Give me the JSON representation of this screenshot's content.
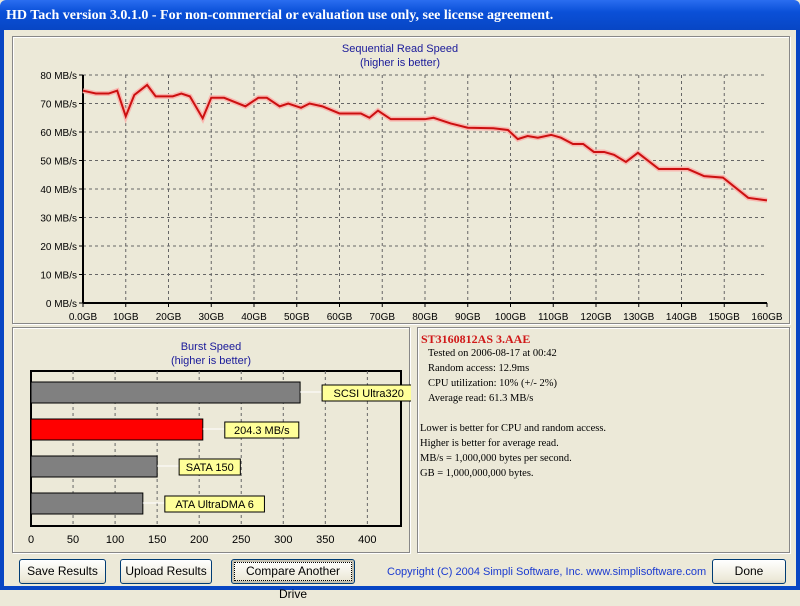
{
  "window": {
    "title": "HD Tach version 3.0.1.0  - For non-commercial or evaluation use only, see license agreement."
  },
  "chart_data": [
    {
      "type": "line",
      "title": "Sequential Read Speed",
      "subtitle": "(higher is better)",
      "xlim": [
        0,
        160
      ],
      "ylim": [
        0,
        80
      ],
      "xticks": [
        "0.0GB",
        "10GB",
        "20GB",
        "30GB",
        "40GB",
        "50GB",
        "60GB",
        "70GB",
        "80GB",
        "90GB",
        "100GB",
        "110GB",
        "120GB",
        "130GB",
        "140GB",
        "150GB",
        "160GB"
      ],
      "yticks": [
        "0 MB/s",
        "10 MB/s",
        "20 MB/s",
        "30 MB/s",
        "40 MB/s",
        "50 MB/s",
        "60 MB/s",
        "70 MB/s",
        "80 MB/s"
      ],
      "grid": true,
      "color": "#e01010",
      "x": [
        0,
        3,
        6,
        8,
        10,
        12,
        15,
        17,
        21,
        23,
        25,
        28,
        30,
        33,
        38,
        41,
        43,
        46,
        48,
        51,
        53,
        56,
        60,
        65,
        67,
        69,
        72,
        80,
        82,
        86,
        90,
        96,
        99.4,
        101.7,
        104,
        106.4,
        109.5,
        111.8,
        114.6,
        117,
        119.5,
        121.9,
        124.2,
        127,
        129.8,
        134.7,
        141.5,
        145.3,
        149.7,
        155.6,
        160
      ],
      "y": [
        74.5,
        73.5,
        73.5,
        74.5,
        65.5,
        73,
        76.5,
        72.5,
        72.5,
        73.5,
        72.5,
        64.8,
        72,
        72,
        69,
        72,
        72,
        69,
        70,
        68.5,
        70,
        69,
        66.5,
        66.5,
        65,
        67.5,
        64.5,
        64.5,
        65,
        63,
        61.5,
        61.3,
        60.7,
        57.5,
        58.6,
        58,
        59,
        58,
        55.8,
        55.8,
        53,
        53,
        52,
        49.5,
        52.7,
        47,
        47,
        44.5,
        44,
        36.9,
        36
      ]
    },
    {
      "type": "bar",
      "orientation": "horizontal",
      "title": "Burst Speed",
      "subtitle": "(higher is better)",
      "xlim": [
        0,
        440
      ],
      "xticks": [
        "0",
        "50",
        "100",
        "150",
        "200",
        "250",
        "300",
        "350",
        "400"
      ],
      "grid": true,
      "bars": [
        {
          "label": "SCSI Ultra320",
          "value": 320,
          "color": "#808080"
        },
        {
          "label": "204.3 MB/s",
          "value": 204.3,
          "color": "#ff0000"
        },
        {
          "label": "SATA 150",
          "value": 150,
          "color": "#808080"
        },
        {
          "label": "ATA UltraDMA 6",
          "value": 133,
          "color": "#808080"
        }
      ]
    }
  ],
  "info": {
    "drive": "ST3160812AS 3.AAE",
    "tested": "Tested on 2006-08-17 at 00:42",
    "random": "Random access: 12.9ms",
    "cpu": "CPU utilization: 10% (+/- 2%)",
    "avg": "Average read: 61.3 MB/s",
    "notes": [
      "Lower is better for CPU and random access.",
      "Higher is better for average read.",
      "MB/s = 1,000,000 bytes per second.",
      "GB = 1,000,000,000 bytes."
    ]
  },
  "buttons": {
    "save": "Save Results",
    "upload": "Upload Results",
    "compare": "Compare Another Drive",
    "done": "Done"
  },
  "copyright": "Copyright (C) 2004 Simpli Software, Inc. www.simplisoftware.com"
}
